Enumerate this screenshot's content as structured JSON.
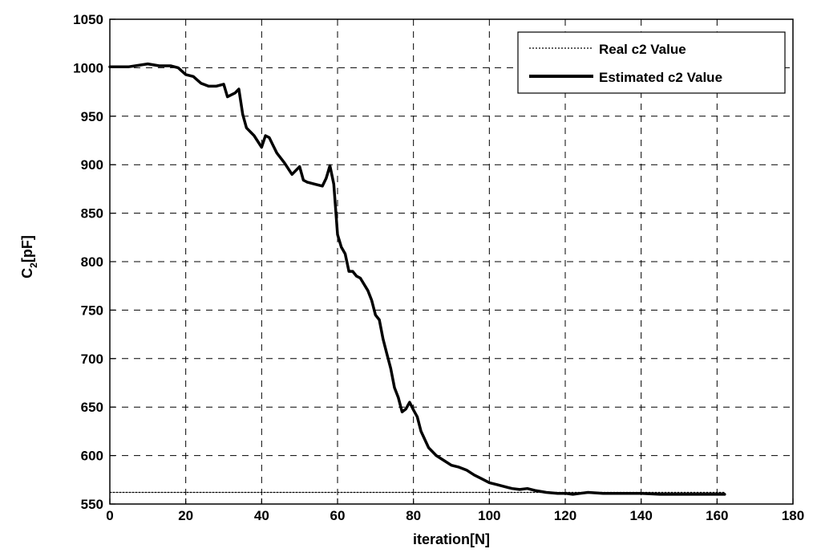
{
  "chart_data": {
    "type": "line",
    "title": "",
    "xlabel": "iteration[N]",
    "ylabel_main": "C",
    "ylabel_sub": "2",
    "ylabel_tail": "[pF]",
    "xlim": [
      0,
      180
    ],
    "ylim": [
      550,
      1050
    ],
    "xticks": [
      0,
      20,
      40,
      60,
      80,
      100,
      120,
      140,
      160,
      180
    ],
    "yticks": [
      550,
      600,
      650,
      700,
      750,
      800,
      850,
      900,
      950,
      1000,
      1050
    ],
    "grid": true,
    "legend_position": "top-right",
    "series": [
      {
        "name": "Real c2 Value",
        "style": "dotted",
        "color": "#000000",
        "x": [
          0,
          162
        ],
        "y": [
          562,
          562
        ]
      },
      {
        "name": "Estimated c2 Value",
        "style": "solid-thick",
        "color": "#000000",
        "x": [
          0,
          5,
          10,
          13,
          16,
          18,
          20,
          22,
          24,
          26,
          28,
          30,
          31,
          33,
          34,
          35,
          36,
          38,
          40,
          41,
          42,
          43,
          44,
          46,
          48,
          50,
          51,
          52,
          54,
          56,
          57,
          58,
          59,
          60,
          61,
          62,
          63,
          64,
          65,
          66,
          68,
          69,
          70,
          71,
          72,
          73,
          74,
          75,
          76,
          77,
          78,
          79,
          80,
          81,
          82,
          84,
          86,
          88,
          90,
          92,
          94,
          96,
          98,
          100,
          102,
          104,
          106,
          108,
          110,
          112,
          115,
          118,
          120,
          122,
          124,
          126,
          130,
          135,
          140,
          145,
          150,
          155,
          160,
          162
        ],
        "y": [
          1001,
          1001,
          1004,
          1002,
          1002,
          1000,
          993,
          991,
          984,
          981,
          981,
          983,
          970,
          974,
          978,
          952,
          938,
          930,
          918,
          930,
          928,
          920,
          912,
          902,
          890,
          898,
          884,
          882,
          880,
          878,
          886,
          899,
          880,
          828,
          815,
          808,
          790,
          790,
          785,
          783,
          770,
          760,
          745,
          740,
          720,
          705,
          690,
          670,
          660,
          645,
          648,
          655,
          647,
          640,
          625,
          608,
          600,
          595,
          590,
          588,
          585,
          580,
          576,
          572,
          570,
          568,
          566,
          565,
          566,
          564,
          562,
          561,
          561,
          560,
          561,
          562,
          561,
          561,
          561,
          560,
          560,
          560,
          560,
          560
        ]
      }
    ]
  }
}
